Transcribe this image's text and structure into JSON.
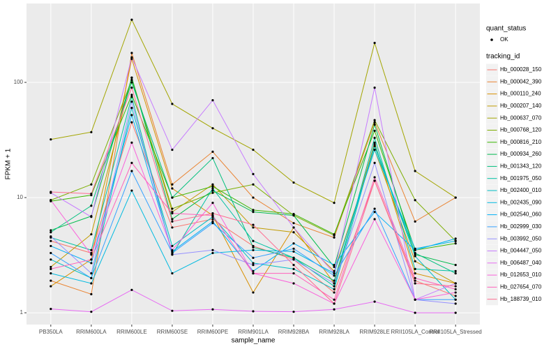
{
  "chart_data": {
    "type": "line",
    "x_label": "sample_name",
    "y_label": "FPKM + 1",
    "y_scale": "log10",
    "grid": true,
    "legend_position": "right",
    "point_color": "#000000",
    "categories": [
      "PB350LA",
      "RRIM600LA",
      "RRIM600LE",
      "RRIM600SE",
      "RRIM600PE",
      "RRIM901LA",
      "RRIM928BA",
      "RRIM928LA",
      "RRIM928LE",
      "RRII105LA_Control",
      "RRII105LA_Stressed"
    ],
    "ylim": [
      0.79,
      484
    ],
    "yticks": [
      1,
      10,
      100
    ],
    "legends": [
      {
        "title": "quant_status",
        "labels": [
          "OK"
        ]
      },
      {
        "title": "tracking_id"
      }
    ],
    "series": [
      {
        "name": "Hb_000028_150",
        "color": "#F8766D",
        "values": [
          4.2,
          3.3,
          45,
          5.5,
          6.5,
          3.8,
          2.9,
          1.5,
          14,
          1.9,
          1.4
        ]
      },
      {
        "name": "Hb_000042_390",
        "color": "#EA8331",
        "values": [
          1.9,
          1.45,
          180,
          13,
          25,
          10,
          6.0,
          4.5,
          45,
          6.2,
          10
        ]
      },
      {
        "name": "Hb_000110_240",
        "color": "#D89000",
        "values": [
          1.7,
          2.9,
          160,
          12,
          7,
          1.5,
          5.5,
          1.8,
          30,
          2.2,
          1.8
        ]
      },
      {
        "name": "Hb_000207_140",
        "color": "#C09B00",
        "values": [
          2.5,
          4.8,
          110,
          7.5,
          13,
          5.5,
          5,
          2.3,
          26,
          2.8,
          1.8
        ]
      },
      {
        "name": "Hb_000637_070",
        "color": "#A3A500",
        "values": [
          32,
          37,
          350,
          65,
          40,
          26,
          13.5,
          9,
          220,
          17,
          10
        ]
      },
      {
        "name": "Hb_000768_120",
        "color": "#7CAE00",
        "values": [
          9.5,
          13,
          105,
          8,
          11,
          13,
          7,
          4.7,
          47,
          9.5,
          4.2
        ]
      },
      {
        "name": "Hb_000816_210",
        "color": "#39B600",
        "values": [
          9.3,
          10.5,
          78,
          10,
          12.5,
          7.8,
          7.2,
          4.8,
          38,
          3.5,
          4.0
        ]
      },
      {
        "name": "Hb_000934_260",
        "color": "#00BB4E",
        "values": [
          5.2,
          6.9,
          110,
          6.5,
          11.5,
          7.5,
          7.0,
          2.5,
          43,
          3.2,
          2.6
        ]
      },
      {
        "name": "Hb_001343_120",
        "color": "#00BF7D",
        "values": [
          5.0,
          8.5,
          100,
          10,
          22,
          3.7,
          3.0,
          1.9,
          28,
          3.3,
          2.2
        ]
      },
      {
        "name": "Hb_001975_050",
        "color": "#00C1A3",
        "values": [
          4.5,
          3.5,
          75,
          3.2,
          12,
          4.2,
          3.0,
          1.7,
          33,
          2.4,
          2.3
        ]
      },
      {
        "name": "Hb_002400_010",
        "color": "#00BFC4",
        "values": [
          2.9,
          2.0,
          60,
          3.8,
          6.8,
          2.7,
          2.4,
          1.6,
          29,
          3.1,
          1.3
        ]
      },
      {
        "name": "Hb_002435_090",
        "color": "#00BAE0",
        "values": [
          2.2,
          1.8,
          11.5,
          2.2,
          3.3,
          3.5,
          3.4,
          2.2,
          26,
          3.6,
          4.2
        ]
      },
      {
        "name": "Hb_002540_060",
        "color": "#00B0F6",
        "values": [
          3.8,
          2.7,
          52,
          3.4,
          6.2,
          2.3,
          4.0,
          2.6,
          7.5,
          3.5,
          4.4
        ]
      },
      {
        "name": "Hb_002999_030",
        "color": "#35A2FF",
        "values": [
          3.3,
          2.0,
          17,
          3.3,
          6.0,
          3.0,
          3.6,
          2.1,
          8.0,
          1.3,
          1.3
        ]
      },
      {
        "name": "Hb_003992_050",
        "color": "#9590FF",
        "values": [
          4.6,
          2.2,
          68,
          3.2,
          3.5,
          2.6,
          2.9,
          1.8,
          20,
          1.3,
          1.2
        ]
      },
      {
        "name": "Hb_004447_050",
        "color": "#C77CFF",
        "values": [
          11,
          6.8,
          165,
          26,
          70,
          16,
          5.5,
          2.2,
          90,
          1.3,
          1.8
        ]
      },
      {
        "name": "Hb_006487_040",
        "color": "#E76BF3",
        "values": [
          1.08,
          1.02,
          1.58,
          1.04,
          1.07,
          1.03,
          1.02,
          1.07,
          1.25,
          1.0,
          1.0
        ]
      },
      {
        "name": "Hb_012653_010",
        "color": "#FA62DB",
        "values": [
          9.5,
          3.2,
          30,
          3.5,
          9.0,
          2.2,
          1.8,
          1.2,
          6.5,
          1.3,
          1.5
        ]
      },
      {
        "name": "Hb_027654_070",
        "color": "#FF62BC",
        "values": [
          2.4,
          2.9,
          20,
          7.3,
          7.0,
          2.2,
          2.2,
          1.3,
          15,
          2.0,
          1.6
        ]
      },
      {
        "name": "Hb_188739_010",
        "color": "#FF6C91",
        "values": [
          11.2,
          10.8,
          90,
          6.2,
          7.3,
          5.8,
          2.6,
          1.2,
          14,
          1.8,
          1.7
        ]
      }
    ]
  }
}
